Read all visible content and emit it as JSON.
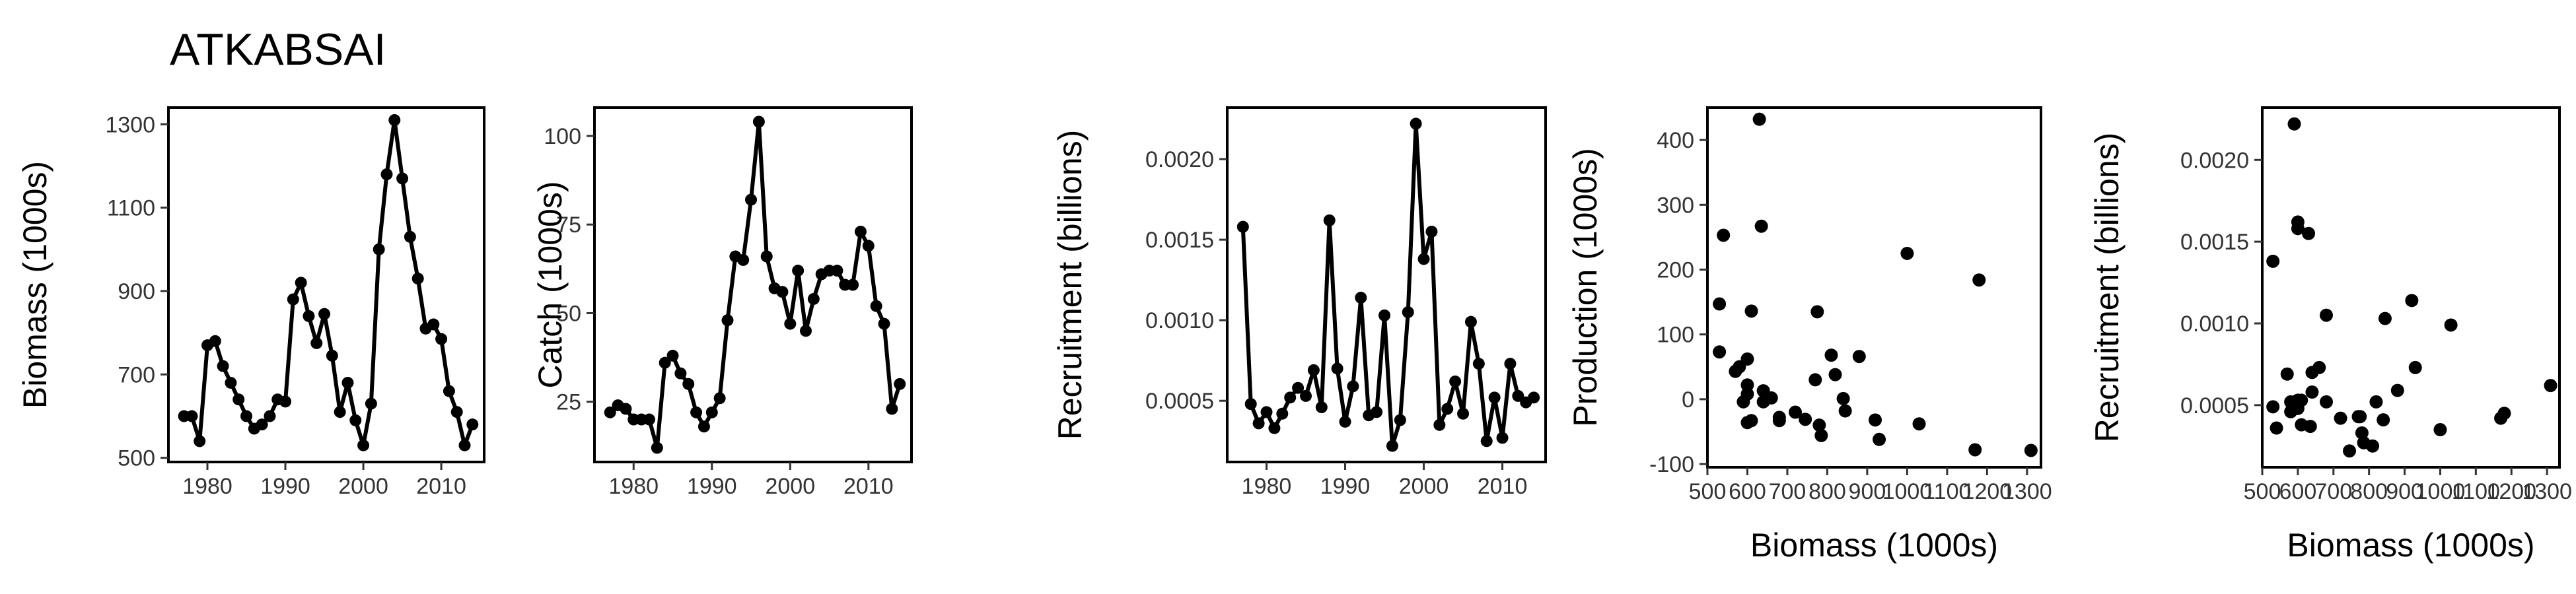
{
  "title": "ATKABSAI",
  "chart_data": [
    {
      "type": "line",
      "y_label": "Biomass (1000s)",
      "color": "#000000",
      "x": [
        1977,
        1978,
        1979,
        1980,
        1981,
        1982,
        1983,
        1984,
        1985,
        1986,
        1987,
        1988,
        1989,
        1990,
        1991,
        1992,
        1993,
        1994,
        1995,
        1996,
        1997,
        1998,
        1999,
        2000,
        2001,
        2002,
        2003,
        2004,
        2005,
        2006,
        2007,
        2008,
        2009,
        2010,
        2011,
        2012,
        2013,
        2014
      ],
      "values": [
        600,
        600,
        540,
        770,
        780,
        720,
        680,
        640,
        600,
        570,
        580,
        600,
        640,
        635,
        880,
        920,
        840,
        775,
        845,
        745,
        610,
        680,
        590,
        530,
        630,
        1000,
        1180,
        1310,
        1170,
        1030,
        930,
        810,
        820,
        785,
        660,
        610,
        530,
        580
      ],
      "xlim": [
        1975,
        2015.5
      ],
      "xticks": [
        1980,
        1990,
        2000,
        2010
      ],
      "ylim": [
        490,
        1340
      ],
      "yticks": [
        500,
        700,
        900,
        1100,
        1300
      ]
    },
    {
      "type": "line",
      "y_label": "Catch (1000s)",
      "color": "#000000",
      "x": [
        1977,
        1978,
        1979,
        1980,
        1981,
        1982,
        1983,
        1984,
        1985,
        1986,
        1987,
        1988,
        1989,
        1990,
        1991,
        1992,
        1993,
        1994,
        1995,
        1996,
        1997,
        1998,
        1999,
        2000,
        2001,
        2002,
        2003,
        2004,
        2005,
        2006,
        2007,
        2008,
        2009,
        2010,
        2011,
        2012,
        2013,
        2014
      ],
      "values": [
        22,
        24,
        23,
        20,
        20,
        20,
        12,
        36,
        38,
        33,
        30,
        22,
        18,
        22,
        26,
        48,
        66,
        65,
        82,
        104,
        66,
        57,
        56,
        47,
        62,
        45,
        54,
        61,
        62,
        62,
        58,
        58,
        73,
        69,
        52,
        47,
        23,
        30
      ],
      "xlim": [
        1975,
        2015.5
      ],
      "xticks": [
        1980,
        1990,
        2000,
        2010
      ],
      "ylim": [
        8,
        108
      ],
      "yticks": [
        25,
        50,
        75,
        100
      ]
    },
    {
      "type": "line",
      "y_label": "Recruitment (billions)",
      "color": "#000000",
      "x": [
        1977,
        1978,
        1979,
        1980,
        1981,
        1982,
        1983,
        1984,
        1985,
        1986,
        1987,
        1988,
        1989,
        1990,
        1991,
        1992,
        1993,
        1994,
        1995,
        1996,
        1997,
        1998,
        1999,
        2000,
        2001,
        2002,
        2003,
        2004,
        2005,
        2006,
        2007,
        2008,
        2009,
        2010,
        2011,
        2012,
        2013,
        2014
      ],
      "values": [
        0.00158,
        0.00048,
        0.00036,
        0.00043,
        0.00033,
        0.00042,
        0.00052,
        0.00058,
        0.00053,
        0.00069,
        0.00046,
        0.00162,
        0.0007,
        0.00037,
        0.00059,
        0.00114,
        0.00041,
        0.00043,
        0.00103,
        0.00022,
        0.00038,
        0.00105,
        0.00222,
        0.00138,
        0.00155,
        0.00035,
        0.00045,
        0.00062,
        0.00042,
        0.00099,
        0.00073,
        0.00025,
        0.00052,
        0.00027,
        0.00073,
        0.00053,
        0.00049,
        0.00052
      ],
      "xlim": [
        1975,
        2015.5
      ],
      "xticks": [
        1980,
        1990,
        2000,
        2010
      ],
      "ylim": [
        0.00012,
        0.00232
      ],
      "yticks": [
        {
          "value": 0.0005,
          "label": "0.0005"
        },
        {
          "value": 0.001,
          "label": "0.0010"
        },
        {
          "value": 0.0015,
          "label": "0.0015"
        },
        {
          "value": 0.002,
          "label": "0.0020"
        }
      ]
    },
    {
      "type": "scatter",
      "y_label": "Production (1000s)",
      "x_label": "Biomass (1000s)",
      "color": "#000000",
      "x": [
        600,
        600,
        540,
        770,
        780,
        720,
        680,
        640,
        600,
        570,
        580,
        600,
        640,
        635,
        880,
        920,
        840,
        775,
        845,
        745,
        610,
        680,
        590,
        530,
        630,
        1000,
        1180,
        1310,
        1170,
        1030,
        930,
        810,
        820,
        785,
        660,
        610,
        530
      ],
      "values": [
        22,
        -36,
        253,
        30,
        -40,
        -20,
        -28,
        -4,
        8,
        43,
        50,
        62,
        13,
        267,
        66,
        -32,
        1,
        135,
        -18,
        -31,
        136,
        -33,
        -4,
        147,
        432,
        225,
        184,
        -79,
        -78,
        -38,
        -62,
        68,
        38,
        -56,
        2,
        -33,
        73
      ],
      "xlim": [
        500,
        1335
      ],
      "xticks": [
        500,
        600,
        700,
        800,
        900,
        1000,
        1100,
        1200,
        1300
      ],
      "ylim": [
        -105,
        450
      ],
      "yticks": [
        -100,
        0,
        100,
        200,
        300,
        400
      ]
    },
    {
      "type": "scatter",
      "y_label": "Recruitment (billions)",
      "x_label": "Biomass (1000s)",
      "color": "#000000",
      "x": [
        600,
        600,
        540,
        770,
        780,
        720,
        680,
        640,
        600,
        570,
        580,
        600,
        640,
        635,
        880,
        920,
        840,
        775,
        845,
        745,
        610,
        680,
        590,
        530,
        630,
        1000,
        1180,
        1310,
        1170,
        1030,
        930,
        810,
        820,
        785,
        660,
        610,
        530,
        580
      ],
      "values": [
        0.00158,
        0.00048,
        0.00036,
        0.00043,
        0.00033,
        0.00042,
        0.00052,
        0.00058,
        0.00053,
        0.00069,
        0.00046,
        0.00162,
        0.0007,
        0.00037,
        0.00059,
        0.00114,
        0.00041,
        0.00043,
        0.00103,
        0.00022,
        0.00038,
        0.00105,
        0.00222,
        0.00138,
        0.00155,
        0.00035,
        0.00045,
        0.00062,
        0.00042,
        0.00099,
        0.00073,
        0.00025,
        0.00052,
        0.00027,
        0.00073,
        0.00053,
        0.00049,
        0.00052
      ],
      "xlim": [
        500,
        1335
      ],
      "xticks": [
        500,
        600,
        700,
        800,
        900,
        1000,
        1100,
        1200,
        1300
      ],
      "ylim": [
        0.00012,
        0.00232
      ],
      "yticks": [
        {
          "value": 0.0005,
          "label": "0.0005"
        },
        {
          "value": 0.001,
          "label": "0.0010"
        },
        {
          "value": 0.0015,
          "label": "0.0015"
        },
        {
          "value": 0.002,
          "label": "0.0020"
        }
      ]
    }
  ]
}
